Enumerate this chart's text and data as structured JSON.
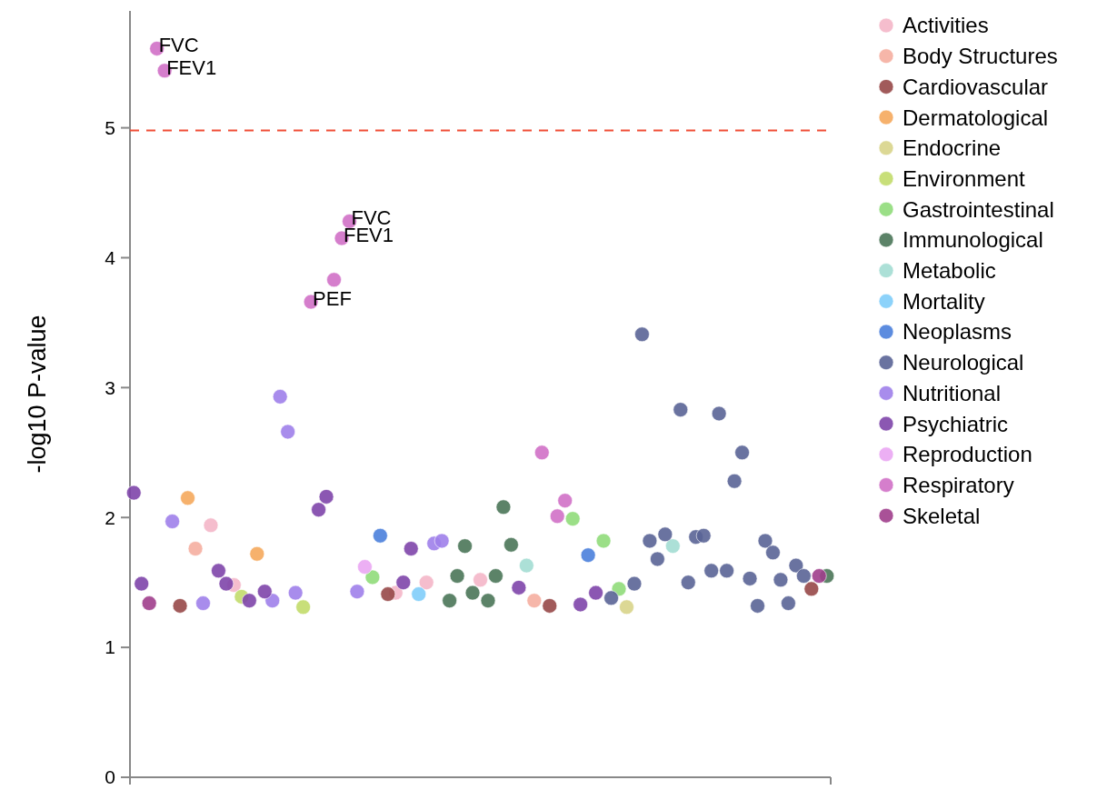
{
  "chart_data": {
    "type": "scatter",
    "ylabel": "-log10 P-value",
    "categories": [
      null,
      null,
      null,
      null,
      null,
      null,
      null,
      null,
      null,
      null,
      null,
      null,
      null,
      null,
      null,
      null,
      null,
      null,
      null,
      null,
      null,
      null,
      null,
      null,
      null,
      null,
      null,
      null,
      null,
      null,
      null,
      null,
      null,
      null,
      null,
      null,
      null,
      null,
      null,
      null,
      null,
      null,
      null,
      null,
      null,
      null,
      null,
      null,
      null,
      null,
      null,
      null,
      null,
      null,
      null,
      null,
      null,
      null,
      null,
      null,
      null,
      null,
      null,
      null,
      null,
      null,
      null,
      null,
      null,
      null,
      null,
      null,
      null,
      null,
      null,
      null,
      null,
      null,
      null,
      null,
      null,
      null,
      null,
      null,
      null,
      null,
      null,
      null,
      null,
      null,
      null
    ],
    "ylim": [
      0,
      5.9
    ],
    "yticks": [
      0,
      1,
      2,
      3,
      4,
      5
    ],
    "tick_labels": "y",
    "legend": "top right",
    "marker": "circle",
    "ref_lines": [
      {
        "axis": "y",
        "value": 4.98,
        "color": "#f04e37",
        "line_style": "dashed"
      }
    ],
    "series": [
      {
        "name": "Activities",
        "color": "#f4b6c8",
        "values": [
          null,
          null,
          null,
          null,
          null,
          null,
          null,
          null,
          null,
          null,
          1.94,
          null,
          null,
          1.48,
          null,
          null,
          null,
          null,
          null,
          null,
          null,
          null,
          null,
          null,
          null,
          null,
          null,
          null,
          null,
          null,
          null,
          null,
          null,
          null,
          1.42,
          null,
          null,
          null,
          1.5,
          null,
          null,
          null,
          null,
          null,
          null,
          1.52,
          null,
          null,
          null,
          null,
          null,
          null,
          null,
          null,
          null,
          null,
          null,
          null,
          null,
          null,
          null,
          null,
          null,
          null,
          null,
          null,
          null,
          null,
          null,
          null,
          null,
          null,
          null,
          null,
          null,
          null,
          null,
          null,
          null,
          null,
          null,
          null,
          null,
          null,
          null,
          null,
          null,
          null,
          null,
          null,
          null
        ]
      },
      {
        "name": "Body Structures",
        "color": "#f5aea0",
        "values": [
          null,
          null,
          null,
          null,
          null,
          null,
          null,
          null,
          1.76,
          null,
          null,
          null,
          null,
          null,
          null,
          null,
          null,
          null,
          null,
          null,
          null,
          null,
          null,
          null,
          null,
          null,
          null,
          null,
          null,
          null,
          null,
          null,
          null,
          null,
          null,
          null,
          null,
          null,
          null,
          null,
          null,
          null,
          null,
          null,
          null,
          null,
          null,
          null,
          null,
          null,
          null,
          null,
          1.36,
          null,
          null,
          null,
          null,
          null,
          null,
          null,
          null,
          null,
          null,
          null,
          null,
          null,
          null,
          null,
          null,
          null,
          null,
          null,
          null,
          null,
          null,
          null,
          null,
          null,
          null,
          null,
          null,
          null,
          null,
          null,
          null,
          null,
          null,
          null,
          null,
          null,
          null
        ]
      },
      {
        "name": "Cardiovascular",
        "color": "#974848",
        "values": [
          null,
          null,
          null,
          null,
          null,
          null,
          1.32,
          null,
          null,
          null,
          null,
          null,
          null,
          null,
          null,
          null,
          null,
          null,
          null,
          null,
          null,
          null,
          null,
          null,
          null,
          null,
          null,
          null,
          null,
          null,
          null,
          null,
          null,
          1.41,
          null,
          null,
          null,
          null,
          null,
          null,
          null,
          null,
          null,
          null,
          null,
          null,
          null,
          null,
          null,
          null,
          null,
          null,
          null,
          null,
          1.32,
          null,
          null,
          null,
          null,
          null,
          null,
          null,
          null,
          null,
          null,
          null,
          null,
          null,
          null,
          null,
          null,
          null,
          null,
          null,
          null,
          null,
          null,
          null,
          null,
          null,
          null,
          null,
          null,
          null,
          null,
          null,
          null,
          null,
          1.45,
          null,
          null
        ]
      },
      {
        "name": "Dermatological",
        "color": "#f5a95c",
        "values": [
          null,
          null,
          null,
          null,
          null,
          null,
          null,
          2.15,
          null,
          null,
          null,
          null,
          null,
          null,
          null,
          null,
          1.72,
          null,
          null,
          null,
          null,
          null,
          null,
          null,
          null,
          null,
          null,
          null,
          null,
          null,
          null,
          null,
          null,
          null,
          null,
          null,
          null,
          null,
          null,
          null,
          null,
          null,
          null,
          null,
          null,
          null,
          null,
          null,
          null,
          null,
          null,
          null,
          null,
          null,
          null,
          null,
          null,
          null,
          null,
          null,
          null,
          null,
          null,
          null,
          null,
          null,
          null,
          null,
          null,
          null,
          null,
          null,
          null,
          null,
          null,
          null,
          null,
          null,
          null,
          null,
          null,
          null,
          null,
          null,
          null,
          null,
          null,
          null,
          null,
          null,
          null
        ]
      },
      {
        "name": "Endocrine",
        "color": "#d8d48a",
        "values": [
          null,
          null,
          null,
          null,
          null,
          null,
          null,
          null,
          null,
          null,
          null,
          null,
          null,
          null,
          null,
          null,
          null,
          null,
          null,
          null,
          null,
          null,
          null,
          null,
          null,
          null,
          null,
          null,
          null,
          null,
          null,
          null,
          null,
          null,
          null,
          null,
          null,
          null,
          null,
          null,
          null,
          null,
          null,
          null,
          null,
          null,
          null,
          null,
          null,
          null,
          null,
          null,
          null,
          null,
          null,
          null,
          null,
          null,
          null,
          null,
          null,
          null,
          null,
          null,
          1.31,
          null,
          null,
          null,
          null,
          null,
          null,
          null,
          null,
          null,
          null,
          null,
          null,
          null,
          null,
          null,
          null,
          null,
          null,
          null,
          null,
          null,
          null,
          null,
          null,
          null,
          null
        ]
      },
      {
        "name": "Environment",
        "color": "#c2db6a",
        "values": [
          null,
          null,
          null,
          null,
          null,
          null,
          null,
          null,
          null,
          null,
          null,
          null,
          null,
          null,
          1.39,
          null,
          null,
          null,
          null,
          null,
          null,
          null,
          1.31,
          null,
          null,
          null,
          null,
          null,
          null,
          null,
          null,
          null,
          null,
          null,
          null,
          null,
          null,
          null,
          null,
          null,
          null,
          null,
          null,
          null,
          null,
          null,
          null,
          null,
          null,
          null,
          null,
          null,
          null,
          null,
          null,
          null,
          null,
          null,
          null,
          null,
          null,
          null,
          null,
          null,
          null,
          null,
          null,
          null,
          null,
          null,
          null,
          null,
          null,
          null,
          null,
          null,
          null,
          null,
          null,
          null,
          null,
          null,
          null,
          null,
          null,
          null,
          null,
          null,
          null,
          null,
          null
        ]
      },
      {
        "name": "Gastrointestinal",
        "color": "#90db7a",
        "values": [
          null,
          null,
          null,
          null,
          null,
          null,
          null,
          null,
          null,
          null,
          null,
          null,
          null,
          null,
          null,
          null,
          null,
          null,
          null,
          null,
          null,
          null,
          null,
          null,
          null,
          null,
          null,
          null,
          null,
          null,
          null,
          1.54,
          null,
          null,
          null,
          null,
          null,
          null,
          null,
          null,
          null,
          null,
          null,
          null,
          null,
          null,
          null,
          null,
          null,
          null,
          null,
          null,
          null,
          null,
          null,
          null,
          null,
          1.99,
          null,
          null,
          null,
          1.82,
          null,
          1.45,
          null,
          null,
          null,
          null,
          null,
          null,
          null,
          null,
          null,
          null,
          null,
          null,
          null,
          null,
          null,
          null,
          null,
          null,
          null,
          null,
          null,
          null,
          null,
          null,
          null,
          null,
          null
        ]
      },
      {
        "name": "Immunological",
        "color": "#4a7558",
        "values": [
          null,
          null,
          null,
          null,
          null,
          null,
          null,
          null,
          null,
          null,
          null,
          null,
          null,
          null,
          null,
          null,
          null,
          null,
          null,
          null,
          null,
          null,
          null,
          null,
          null,
          null,
          null,
          null,
          null,
          null,
          null,
          null,
          null,
          null,
          null,
          null,
          null,
          null,
          null,
          null,
          null,
          1.36,
          1.55,
          1.78,
          1.42,
          null,
          1.36,
          1.55,
          2.08,
          1.79,
          null,
          null,
          null,
          null,
          null,
          null,
          null,
          null,
          null,
          null,
          null,
          null,
          null,
          null,
          null,
          null,
          null,
          null,
          null,
          null,
          null,
          null,
          null,
          null,
          null,
          null,
          null,
          null,
          null,
          null,
          null,
          null,
          null,
          null,
          null,
          null,
          null,
          null,
          null,
          null,
          1.55
        ]
      },
      {
        "name": "Metabolic",
        "color": "#a3ddd3",
        "values": [
          null,
          null,
          null,
          null,
          null,
          null,
          null,
          null,
          null,
          null,
          null,
          null,
          null,
          null,
          null,
          null,
          null,
          null,
          null,
          null,
          null,
          null,
          null,
          null,
          null,
          null,
          null,
          null,
          null,
          null,
          null,
          null,
          null,
          null,
          null,
          null,
          null,
          null,
          null,
          null,
          null,
          null,
          null,
          null,
          null,
          null,
          null,
          null,
          null,
          null,
          null,
          1.63,
          null,
          null,
          null,
          null,
          null,
          null,
          null,
          null,
          null,
          null,
          null,
          null,
          null,
          null,
          null,
          null,
          null,
          null,
          1.78,
          null,
          null,
          null,
          null,
          null,
          null,
          null,
          null,
          null,
          null,
          null,
          null,
          null,
          null,
          null,
          null,
          null,
          null,
          null,
          null
        ]
      },
      {
        "name": "Mortality",
        "color": "#7fcdfa",
        "values": [
          null,
          null,
          null,
          null,
          null,
          null,
          null,
          null,
          null,
          null,
          null,
          null,
          null,
          null,
          null,
          null,
          null,
          null,
          null,
          null,
          null,
          null,
          null,
          null,
          null,
          null,
          null,
          null,
          null,
          null,
          null,
          null,
          null,
          null,
          null,
          null,
          null,
          1.41,
          null,
          null,
          null,
          null,
          null,
          null,
          null,
          null,
          null,
          null,
          null,
          null,
          null,
          null,
          null,
          null,
          null,
          null,
          null,
          null,
          null,
          null,
          null,
          null,
          null,
          null,
          null,
          null,
          null,
          null,
          null,
          null,
          null,
          null,
          null,
          null,
          null,
          null,
          null,
          null,
          null,
          null,
          null,
          null,
          null,
          null,
          null,
          null,
          null,
          null,
          null,
          null,
          null
        ]
      },
      {
        "name": "Neoplasms",
        "color": "#4a80dc",
        "values": [
          null,
          null,
          null,
          null,
          null,
          null,
          null,
          null,
          null,
          null,
          null,
          null,
          null,
          null,
          null,
          null,
          null,
          null,
          null,
          null,
          null,
          null,
          null,
          null,
          null,
          null,
          null,
          null,
          null,
          null,
          null,
          null,
          1.86,
          null,
          null,
          null,
          null,
          null,
          null,
          null,
          null,
          null,
          null,
          null,
          null,
          null,
          null,
          null,
          null,
          null,
          null,
          null,
          null,
          null,
          null,
          null,
          null,
          null,
          null,
          1.71,
          null,
          null,
          null,
          null,
          null,
          null,
          null,
          null,
          null,
          null,
          null,
          null,
          null,
          null,
          null,
          null,
          null,
          null,
          null,
          null,
          null,
          null,
          null,
          null,
          null,
          null,
          null,
          null,
          null,
          null,
          null
        ]
      },
      {
        "name": "Neurological",
        "color": "#5a6496",
        "values": [
          null,
          null,
          null,
          null,
          null,
          null,
          null,
          null,
          null,
          null,
          null,
          null,
          null,
          null,
          null,
          null,
          null,
          null,
          null,
          null,
          null,
          null,
          null,
          null,
          null,
          null,
          null,
          null,
          null,
          null,
          null,
          null,
          null,
          null,
          null,
          null,
          null,
          null,
          null,
          null,
          null,
          null,
          null,
          null,
          null,
          null,
          null,
          null,
          null,
          null,
          null,
          null,
          null,
          null,
          null,
          null,
          null,
          null,
          null,
          null,
          null,
          null,
          1.38,
          null,
          null,
          1.49,
          3.41,
          1.82,
          1.68,
          1.87,
          null,
          2.83,
          1.5,
          1.85,
          1.86,
          1.59,
          2.8,
          1.59,
          2.28,
          2.5,
          1.53,
          1.32,
          1.82,
          1.73,
          1.52,
          1.34,
          1.63,
          1.55,
          null,
          null,
          null
        ]
      },
      {
        "name": "Nutritional",
        "color": "#9f80ea",
        "values": [
          null,
          null,
          null,
          null,
          null,
          1.97,
          null,
          null,
          null,
          1.34,
          null,
          null,
          null,
          null,
          null,
          null,
          null,
          null,
          1.36,
          2.93,
          2.66,
          1.42,
          null,
          null,
          null,
          null,
          null,
          null,
          null,
          1.43,
          null,
          null,
          null,
          null,
          null,
          null,
          null,
          null,
          null,
          1.8,
          1.82,
          null,
          null,
          null,
          null,
          null,
          null,
          null,
          null,
          null,
          null,
          null,
          null,
          null,
          null,
          null,
          null,
          null,
          null,
          null,
          null,
          null,
          null,
          null,
          null,
          null,
          null,
          null,
          null,
          null,
          null,
          null,
          null,
          null,
          null,
          null,
          null,
          null,
          null,
          null,
          null,
          null,
          null,
          null,
          null,
          null,
          null,
          null,
          null,
          null,
          null
        ]
      },
      {
        "name": "Psychiatric",
        "color": "#7e45aa",
        "values": [
          2.19,
          1.49,
          null,
          null,
          null,
          null,
          null,
          null,
          null,
          null,
          null,
          1.59,
          1.49,
          null,
          null,
          1.36,
          null,
          1.43,
          null,
          null,
          null,
          null,
          null,
          null,
          2.06,
          2.16,
          null,
          null,
          null,
          null,
          null,
          null,
          null,
          null,
          null,
          1.5,
          1.76,
          null,
          null,
          null,
          null,
          null,
          null,
          null,
          null,
          null,
          null,
          null,
          null,
          null,
          1.46,
          null,
          null,
          null,
          null,
          null,
          null,
          null,
          1.33,
          null,
          1.42,
          null,
          null,
          null,
          null,
          null,
          null,
          null,
          null,
          null,
          null,
          null,
          null,
          null,
          null,
          null,
          null,
          null,
          null,
          null,
          null,
          null,
          null,
          null,
          null,
          null,
          null,
          null,
          null,
          null,
          null
        ]
      },
      {
        "name": "Reproduction",
        "color": "#eaa6f3",
        "values": [
          null,
          null,
          null,
          null,
          null,
          null,
          null,
          null,
          null,
          null,
          null,
          null,
          null,
          null,
          null,
          null,
          null,
          null,
          null,
          null,
          null,
          null,
          null,
          null,
          null,
          null,
          null,
          null,
          null,
          null,
          1.62,
          null,
          null,
          null,
          null,
          null,
          null,
          null,
          null,
          null,
          null,
          null,
          null,
          null,
          null,
          null,
          null,
          null,
          null,
          null,
          null,
          null,
          null,
          null,
          null,
          null,
          null,
          null,
          null,
          null,
          null,
          null,
          null,
          null,
          null,
          null,
          null,
          null,
          null,
          null,
          null,
          null,
          null,
          null,
          null,
          null,
          null,
          null,
          null,
          null,
          null,
          null,
          null,
          null,
          null,
          null,
          null,
          null,
          null,
          null,
          null
        ]
      },
      {
        "name": "Respiratory",
        "color": "#d070c6",
        "values": [
          null,
          null,
          null,
          5.61,
          5.44,
          null,
          null,
          null,
          null,
          null,
          null,
          null,
          null,
          null,
          null,
          null,
          null,
          null,
          null,
          null,
          null,
          null,
          null,
          3.66,
          null,
          null,
          3.83,
          4.15,
          4.28,
          null,
          null,
          null,
          null,
          null,
          null,
          null,
          null,
          null,
          null,
          null,
          null,
          null,
          null,
          null,
          null,
          null,
          null,
          null,
          null,
          null,
          null,
          null,
          null,
          2.5,
          null,
          2.01,
          2.13,
          null,
          null,
          null,
          null,
          null,
          null,
          null,
          null,
          null,
          null,
          null,
          null,
          null,
          null,
          null,
          null,
          null,
          null,
          null,
          null,
          null,
          null,
          null,
          null,
          null,
          null,
          null,
          null,
          null,
          null,
          null,
          null,
          null,
          null
        ],
        "value_labels": [
          null,
          null,
          null,
          "FVC",
          "FEV1",
          null,
          null,
          null,
          null,
          null,
          null,
          null,
          null,
          null,
          null,
          null,
          null,
          null,
          null,
          null,
          null,
          null,
          null,
          "PEF",
          null,
          null,
          null,
          "FEV1",
          "FVC",
          null,
          null,
          null,
          null,
          null,
          null,
          null,
          null,
          null,
          null,
          null,
          null,
          null,
          null,
          null,
          null,
          null,
          null,
          null,
          null,
          null,
          null,
          null,
          null,
          null,
          null,
          null,
          null,
          null,
          null,
          null,
          null,
          null,
          null,
          null,
          null,
          null,
          null,
          null,
          null,
          null,
          null,
          null,
          null,
          null,
          null,
          null,
          null,
          null,
          null,
          null,
          null,
          null,
          null,
          null,
          null,
          null,
          null,
          null,
          null,
          null,
          null
        ]
      },
      {
        "name": "Skeletal",
        "color": "#a03e8c",
        "values": [
          null,
          null,
          1.34,
          null,
          null,
          null,
          null,
          null,
          null,
          null,
          null,
          null,
          null,
          null,
          null,
          null,
          null,
          null,
          null,
          null,
          null,
          null,
          null,
          null,
          null,
          null,
          null,
          null,
          null,
          null,
          null,
          null,
          null,
          null,
          null,
          null,
          null,
          null,
          null,
          null,
          null,
          null,
          null,
          null,
          null,
          null,
          null,
          null,
          null,
          null,
          null,
          null,
          null,
          null,
          null,
          null,
          null,
          null,
          null,
          null,
          null,
          null,
          null,
          null,
          null,
          null,
          null,
          null,
          null,
          null,
          null,
          null,
          null,
          null,
          null,
          null,
          null,
          null,
          null,
          null,
          null,
          null,
          null,
          null,
          null,
          null,
          null,
          null,
          null,
          1.55,
          null
        ]
      }
    ]
  }
}
